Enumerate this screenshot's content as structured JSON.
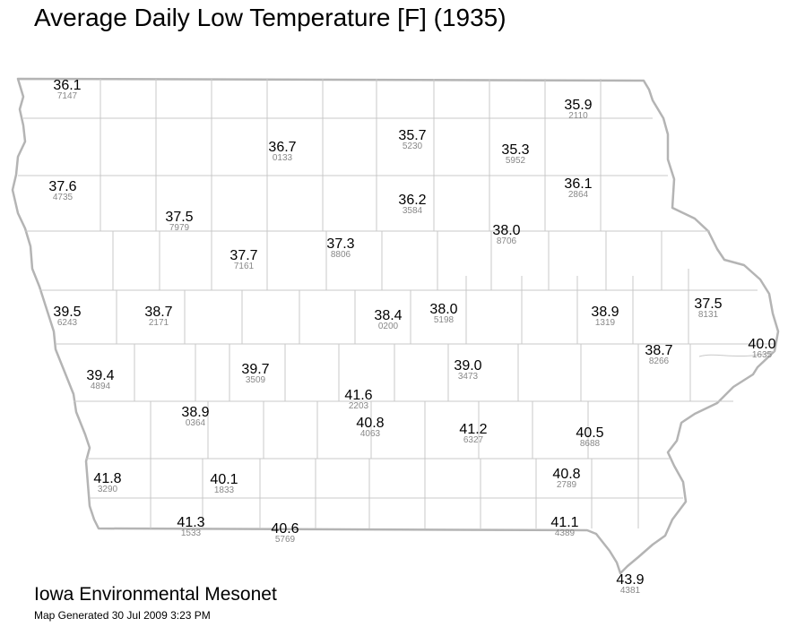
{
  "title": "Average Daily Low Temperature [F] (1935)",
  "organization": "Iowa Environmental Mesonet",
  "generated": "Map Generated 30 Jul 2009 3:23 PM",
  "colors": {
    "border": "#b4b4b4",
    "county_lines": "#c8c8c8",
    "value_text": "#000000",
    "station_id_text": "#888888"
  },
  "stations": [
    {
      "value": "36.1",
      "id": "7147"
    },
    {
      "value": "35.9",
      "id": "2110"
    },
    {
      "value": "36.7",
      "id": "0133"
    },
    {
      "value": "35.7",
      "id": "5230"
    },
    {
      "value": "35.3",
      "id": "5952"
    },
    {
      "value": "37.6",
      "id": "4735"
    },
    {
      "value": "36.1",
      "id": "2864"
    },
    {
      "value": "36.2",
      "id": "3584"
    },
    {
      "value": "37.5",
      "id": "7979"
    },
    {
      "value": "38.0",
      "id": "8706"
    },
    {
      "value": "37.7",
      "id": "7161"
    },
    {
      "value": "37.3",
      "id": "8806"
    },
    {
      "value": "39.5",
      "id": "6243"
    },
    {
      "value": "38.7",
      "id": "2171"
    },
    {
      "value": "38.4",
      "id": "0200"
    },
    {
      "value": "38.0",
      "id": "5198"
    },
    {
      "value": "38.9",
      "id": "1319"
    },
    {
      "value": "37.5",
      "id": "8131"
    },
    {
      "value": "40.0",
      "id": "1635"
    },
    {
      "value": "38.7",
      "id": "8266"
    },
    {
      "value": "39.4",
      "id": "4894"
    },
    {
      "value": "39.7",
      "id": "3509"
    },
    {
      "value": "39.0",
      "id": "3473"
    },
    {
      "value": "41.6",
      "id": "2203"
    },
    {
      "value": "38.9",
      "id": "0364"
    },
    {
      "value": "40.8",
      "id": "4063"
    },
    {
      "value": "41.2",
      "id": "6327"
    },
    {
      "value": "40.5",
      "id": "8688"
    },
    {
      "value": "41.8",
      "id": "3290"
    },
    {
      "value": "40.1",
      "id": "1833"
    },
    {
      "value": "40.8",
      "id": "2789"
    },
    {
      "value": "41.3",
      "id": "1533"
    },
    {
      "value": "40.6",
      "id": "5769"
    },
    {
      "value": "41.1",
      "id": "4389"
    },
    {
      "value": "43.9",
      "id": "4381"
    }
  ]
}
